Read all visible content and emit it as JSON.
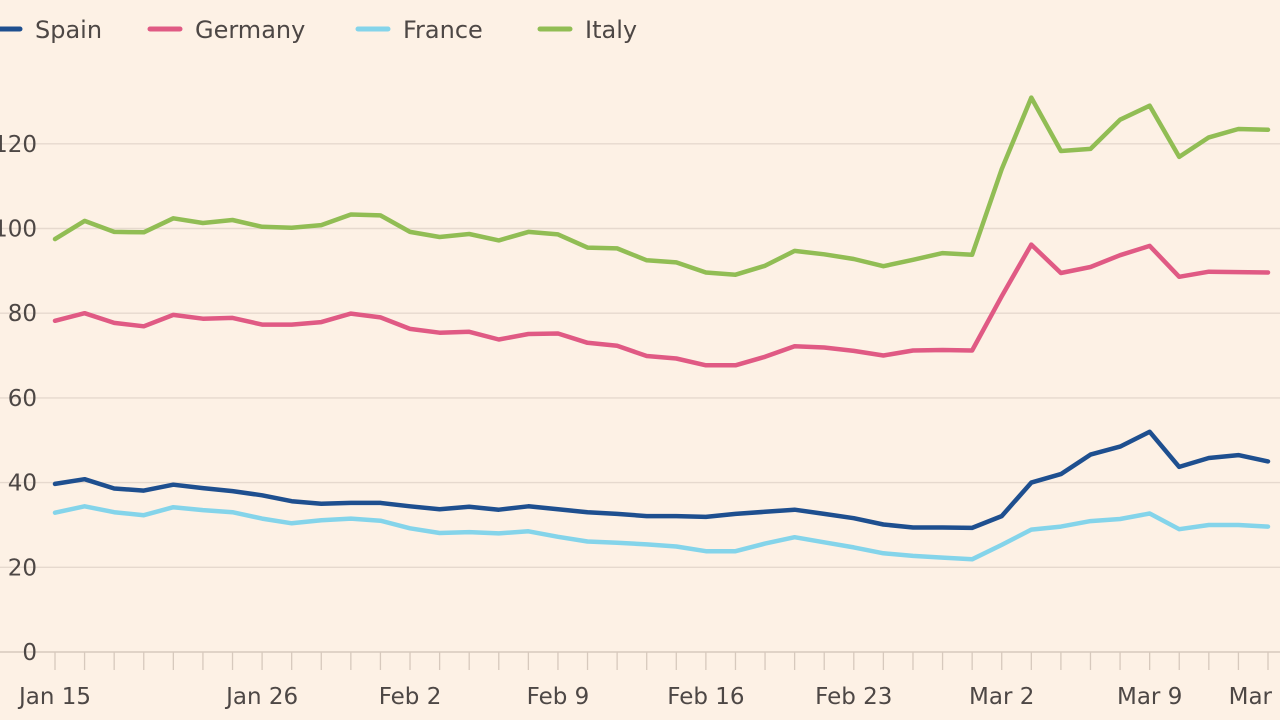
{
  "chart_data": {
    "type": "line",
    "title": "",
    "xlabel": "",
    "ylabel": "",
    "ylim": [
      0,
      135
    ],
    "yticks": [
      0,
      20,
      40,
      60,
      80,
      100,
      120
    ],
    "y_tick_labels": [
      "0",
      "20",
      "40",
      "60",
      "80",
      "100",
      "120"
    ],
    "x_tick_labels": [
      "Jan 15",
      "Jan 26",
      "Feb 2",
      "Feb 9",
      "Feb 16",
      "Feb 23",
      "Mar 2",
      "Mar 9",
      "Mar"
    ],
    "x_tick_index": [
      0,
      7,
      12,
      17,
      22,
      27,
      32,
      37,
      41
    ],
    "grid": true,
    "legend_position": "top-left",
    "x": [
      "Jan 15",
      "Jan 16",
      "Jan 19",
      "Jan 20",
      "Jan 21",
      "Jan 22",
      "Jan 23",
      "Jan 26",
      "Jan 27",
      "Jan 28",
      "Jan 29",
      "Jan 30",
      "Feb 2",
      "Feb 3",
      "Feb 4",
      "Feb 5",
      "Feb 6",
      "Feb 9",
      "Feb 10",
      "Feb 11",
      "Feb 12",
      "Feb 13",
      "Feb 16",
      "Feb 17",
      "Feb 18",
      "Feb 19",
      "Feb 20",
      "Feb 23",
      "Feb 24",
      "Feb 25",
      "Feb 26",
      "Feb 27",
      "Mar 2",
      "Mar 3",
      "Mar 4",
      "Mar 5",
      "Mar 6",
      "Mar 9",
      "Mar 10",
      "Mar 11",
      "Mar 12",
      "Mar 13"
    ],
    "series": [
      {
        "name": "Spain",
        "color": "#1e4f8f",
        "values": [
          39.7,
          40.8,
          38.6,
          38.1,
          39.5,
          38.7,
          38.0,
          37.0,
          35.6,
          35.0,
          35.2,
          35.2,
          34.4,
          33.7,
          34.3,
          33.6,
          34.4,
          33.7,
          33.0,
          32.6,
          32.1,
          32.1,
          31.9,
          32.6,
          33.1,
          33.6,
          32.6,
          31.6,
          30.1,
          29.4,
          29.4,
          29.3,
          32.1,
          40.0,
          42.0,
          46.6,
          48.5,
          52.0,
          43.7,
          45.8,
          46.5,
          45.0
        ]
      },
      {
        "name": "Germany",
        "color": "#e05a84",
        "values": [
          78.2,
          80.0,
          77.7,
          76.9,
          79.6,
          78.7,
          78.9,
          77.3,
          77.3,
          77.9,
          79.9,
          79.0,
          76.3,
          75.4,
          75.6,
          73.8,
          75.1,
          75.2,
          73.0,
          72.3,
          69.9,
          69.3,
          67.7,
          67.7,
          69.7,
          72.2,
          71.9,
          71.1,
          70.0,
          71.2,
          71.3,
          71.2,
          84.0,
          96.2,
          89.5,
          90.9,
          93.7,
          95.9,
          88.6,
          89.8,
          89.7,
          89.6
        ]
      },
      {
        "name": "France",
        "color": "#84d4ea",
        "values": [
          32.9,
          34.4,
          33.0,
          32.3,
          34.2,
          33.5,
          33.0,
          31.5,
          30.4,
          31.1,
          31.5,
          31.0,
          29.2,
          28.1,
          28.3,
          28.0,
          28.5,
          27.2,
          26.1,
          25.8,
          25.4,
          24.9,
          23.8,
          23.8,
          25.6,
          27.1,
          25.9,
          24.7,
          23.3,
          22.7,
          22.3,
          21.9,
          25.3,
          28.9,
          29.6,
          30.9,
          31.4,
          32.7,
          29.0,
          30.0,
          30.0,
          29.6
        ]
      },
      {
        "name": "Italy",
        "color": "#91bd54",
        "values": [
          97.5,
          101.8,
          99.2,
          99.1,
          102.4,
          101.3,
          102.0,
          100.4,
          100.2,
          100.8,
          103.3,
          103.1,
          99.2,
          98.0,
          98.7,
          97.2,
          99.2,
          98.6,
          95.5,
          95.3,
          92.5,
          92.0,
          89.6,
          89.1,
          91.2,
          94.7,
          93.9,
          92.8,
          91.1,
          92.6,
          94.2,
          93.8,
          114.0,
          130.9,
          118.3,
          118.8,
          125.7,
          129.0,
          116.9,
          121.5,
          123.5,
          123.3
        ]
      }
    ]
  }
}
